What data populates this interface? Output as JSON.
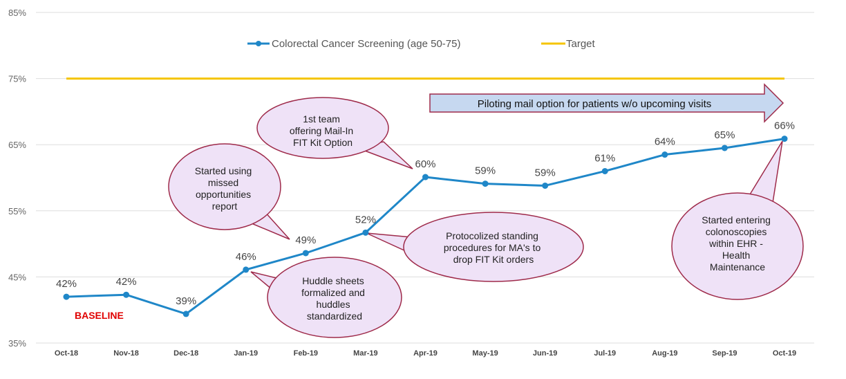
{
  "chart_data": {
    "type": "line",
    "categories": [
      "Oct-18",
      "Nov-18",
      "Dec-18",
      "Jan-19",
      "Feb-19",
      "Mar-19",
      "Apr-19",
      "May-19",
      "Jun-19",
      "Jul-19",
      "Aug-19",
      "Sep-19",
      "Oct-19"
    ],
    "series": [
      {
        "name": "Colorectal Cancer Screening (age 50-75)",
        "values": [
          42.0,
          42.3,
          39.4,
          46.1,
          48.6,
          51.7,
          60.1,
          59.1,
          58.8,
          61.0,
          63.5,
          64.5,
          65.9
        ],
        "labels": [
          "42%",
          "42%",
          "39%",
          "46%",
          "49%",
          "52%",
          "60%",
          "59%",
          "59%",
          "61%",
          "64%",
          "65%",
          "66%"
        ],
        "color": "#1f87c8"
      },
      {
        "name": "Target",
        "values": [
          75,
          75,
          75,
          75,
          75,
          75,
          75,
          75,
          75,
          75,
          75,
          75,
          75
        ],
        "color": "#f5c400"
      }
    ],
    "ylim": [
      35,
      85
    ],
    "yticks": [
      "35%",
      "45%",
      "55%",
      "65%",
      "75%",
      "85%"
    ],
    "ytick_values": [
      35,
      45,
      55,
      65,
      75,
      85
    ],
    "grid": true,
    "legend": "top-center",
    "annotations": {
      "baseline": "BASELINE",
      "banner": "Piloting mail option for patients w/o upcoming visits",
      "callouts": [
        {
          "lines": [
            "Started using",
            "missed",
            "opportunities",
            "report"
          ],
          "target_index": 4
        },
        {
          "lines": [
            "1st team",
            "offering Mail-In",
            "FIT Kit Option"
          ],
          "target_index": 6
        },
        {
          "lines": [
            "Huddle sheets",
            "formalized and",
            "huddles",
            "standardized"
          ],
          "target_index": 3
        },
        {
          "lines": [
            "Protocolized standing",
            "procedures for MA's to",
            "drop FIT Kit orders"
          ],
          "target_index": 5
        },
        {
          "lines": [
            "Started entering",
            "colonoscopies",
            "within EHR -",
            "Health",
            "Maintenance"
          ],
          "target_index": 12
        }
      ]
    },
    "colors": {
      "callout_fill": "#efe2f7",
      "callout_stroke": "#9e2a4a",
      "banner_fill": "#c6d8f0",
      "banner_stroke": "#9e2a4a",
      "grid": "#dddddd"
    }
  }
}
